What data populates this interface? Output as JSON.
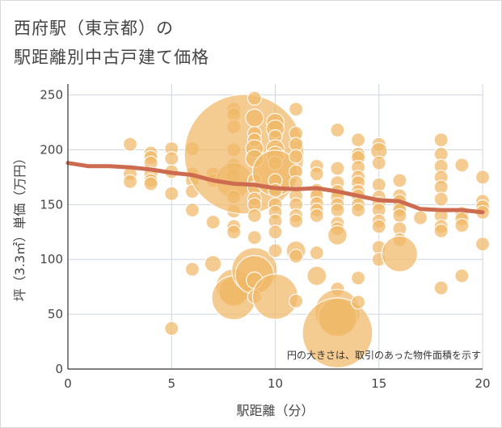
{
  "title_line1": "西府駅（東京都）の",
  "title_line2": "駅距離別中古戸建て価格",
  "colors": {
    "bubble": "#f0b968",
    "trend": "#cd6b50",
    "grid": "#cfd6e0",
    "axis": "#333333"
  },
  "chart_data": {
    "type": "scatter",
    "title": "西府駅（東京都）の駅距離別中古戸建て価格",
    "xlabel": "駅距離（分）",
    "ylabel": "坪（3.3㎡）単価（万円）",
    "xlim": [
      0,
      20
    ],
    "ylim": [
      0,
      260
    ],
    "x_ticks": [
      "0",
      "5",
      "10",
      "15",
      "20"
    ],
    "y_ticks": [
      "0",
      "50",
      "100",
      "150",
      "200",
      "250"
    ],
    "annotation": "円の大きさは、取引のあった物件面積を示す",
    "points": [
      {
        "x": 3,
        "y": 205,
        "s": 1
      },
      {
        "x": 3,
        "y": 178,
        "s": 1
      },
      {
        "x": 3,
        "y": 171,
        "s": 1
      },
      {
        "x": 4,
        "y": 197,
        "s": 1
      },
      {
        "x": 4,
        "y": 193,
        "s": 1
      },
      {
        "x": 4,
        "y": 188,
        "s": 1
      },
      {
        "x": 4,
        "y": 178,
        "s": 1
      },
      {
        "x": 4,
        "y": 172,
        "s": 1
      },
      {
        "x": 4,
        "y": 169,
        "s": 1
      },
      {
        "x": 5,
        "y": 201,
        "s": 1
      },
      {
        "x": 5,
        "y": 192,
        "s": 1
      },
      {
        "x": 5,
        "y": 180,
        "s": 1
      },
      {
        "x": 5,
        "y": 160,
        "s": 1
      },
      {
        "x": 5,
        "y": 37,
        "s": 1
      },
      {
        "x": 6,
        "y": 201,
        "s": 1
      },
      {
        "x": 6,
        "y": 178,
        "s": 1
      },
      {
        "x": 6,
        "y": 172,
        "s": 1
      },
      {
        "x": 6,
        "y": 162,
        "s": 1
      },
      {
        "x": 6,
        "y": 145,
        "s": 1
      },
      {
        "x": 6,
        "y": 91,
        "s": 1
      },
      {
        "x": 7,
        "y": 178,
        "s": 1
      },
      {
        "x": 7,
        "y": 172,
        "s": 1
      },
      {
        "x": 7,
        "y": 134,
        "s": 1
      },
      {
        "x": 7,
        "y": 96,
        "s": 1.2
      },
      {
        "x": 8,
        "y": 237,
        "s": 1
      },
      {
        "x": 8,
        "y": 232,
        "s": 1
      },
      {
        "x": 8,
        "y": 221,
        "s": 1
      },
      {
        "x": 8,
        "y": 200,
        "s": 1
      },
      {
        "x": 8,
        "y": 186,
        "s": 1
      },
      {
        "x": 8,
        "y": 177,
        "s": 1
      },
      {
        "x": 8,
        "y": 172,
        "s": 2.6
      },
      {
        "x": 8,
        "y": 157,
        "s": 1
      },
      {
        "x": 8,
        "y": 144,
        "s": 1
      },
      {
        "x": 8,
        "y": 130,
        "s": 1
      },
      {
        "x": 8,
        "y": 125,
        "s": 1
      },
      {
        "x": 8,
        "y": 75,
        "s": 2.6
      },
      {
        "x": 8,
        "y": 71,
        "s": 2.2
      },
      {
        "x": 8,
        "y": 65,
        "s": 3.2
      },
      {
        "x": 8.5,
        "y": 196,
        "s": 8.7
      },
      {
        "x": 9,
        "y": 247,
        "s": 1
      },
      {
        "x": 9,
        "y": 229,
        "s": 1.3
      },
      {
        "x": 9,
        "y": 215,
        "s": 1
      },
      {
        "x": 9,
        "y": 209,
        "s": 1
      },
      {
        "x": 9,
        "y": 201,
        "s": 1.3
      },
      {
        "x": 9,
        "y": 192,
        "s": 1.3
      },
      {
        "x": 9,
        "y": 172,
        "s": 1
      },
      {
        "x": 9,
        "y": 165,
        "s": 1
      },
      {
        "x": 9,
        "y": 155,
        "s": 1
      },
      {
        "x": 9,
        "y": 150,
        "s": 1
      },
      {
        "x": 9,
        "y": 140,
        "s": 1
      },
      {
        "x": 9,
        "y": 120,
        "s": 1
      },
      {
        "x": 9,
        "y": 90,
        "s": 3.3
      },
      {
        "x": 9,
        "y": 86,
        "s": 2.8
      },
      {
        "x": 9,
        "y": 81,
        "s": 1.2
      },
      {
        "x": 9,
        "y": 66,
        "s": 1
      },
      {
        "x": 10,
        "y": 225,
        "s": 1.3
      },
      {
        "x": 10,
        "y": 219,
        "s": 1.3
      },
      {
        "x": 10,
        "y": 212,
        "s": 1
      },
      {
        "x": 10,
        "y": 201,
        "s": 1.3
      },
      {
        "x": 10,
        "y": 195,
        "s": 1.3
      },
      {
        "x": 10,
        "y": 188,
        "s": 1
      },
      {
        "x": 10,
        "y": 179,
        "s": 3.3
      },
      {
        "x": 10,
        "y": 172,
        "s": 1
      },
      {
        "x": 10,
        "y": 163,
        "s": 1
      },
      {
        "x": 10,
        "y": 150,
        "s": 1
      },
      {
        "x": 10,
        "y": 143,
        "s": 1
      },
      {
        "x": 10,
        "y": 135,
        "s": 1
      },
      {
        "x": 10,
        "y": 125,
        "s": 1
      },
      {
        "x": 10,
        "y": 108,
        "s": 1
      },
      {
        "x": 10,
        "y": 66,
        "s": 3.3
      },
      {
        "x": 11,
        "y": 237,
        "s": 1
      },
      {
        "x": 11,
        "y": 215,
        "s": 1
      },
      {
        "x": 11,
        "y": 205,
        "s": 1
      },
      {
        "x": 11,
        "y": 194,
        "s": 1
      },
      {
        "x": 11,
        "y": 180,
        "s": 1
      },
      {
        "x": 11,
        "y": 170,
        "s": 1
      },
      {
        "x": 11,
        "y": 158,
        "s": 1
      },
      {
        "x": 11,
        "y": 150,
        "s": 1
      },
      {
        "x": 11,
        "y": 140,
        "s": 1
      },
      {
        "x": 11,
        "y": 135,
        "s": 1
      },
      {
        "x": 11,
        "y": 108,
        "s": 1.4
      },
      {
        "x": 11,
        "y": 103,
        "s": 1
      },
      {
        "x": 11,
        "y": 62,
        "s": 1
      },
      {
        "x": 12,
        "y": 185,
        "s": 1
      },
      {
        "x": 12,
        "y": 178,
        "s": 1
      },
      {
        "x": 12,
        "y": 163,
        "s": 1
      },
      {
        "x": 12,
        "y": 158,
        "s": 1
      },
      {
        "x": 12,
        "y": 151,
        "s": 1
      },
      {
        "x": 12,
        "y": 145,
        "s": 1
      },
      {
        "x": 12,
        "y": 140,
        "s": 1
      },
      {
        "x": 12,
        "y": 106,
        "s": 1
      },
      {
        "x": 12,
        "y": 85,
        "s": 1.4
      },
      {
        "x": 13,
        "y": 218,
        "s": 1
      },
      {
        "x": 13,
        "y": 183,
        "s": 1
      },
      {
        "x": 13,
        "y": 170,
        "s": 1
      },
      {
        "x": 13,
        "y": 162,
        "s": 1
      },
      {
        "x": 13,
        "y": 157,
        "s": 1
      },
      {
        "x": 13,
        "y": 150,
        "s": 1
      },
      {
        "x": 13,
        "y": 145,
        "s": 1
      },
      {
        "x": 13,
        "y": 133,
        "s": 1
      },
      {
        "x": 13,
        "y": 128,
        "s": 1
      },
      {
        "x": 13,
        "y": 122,
        "s": 1.4
      },
      {
        "x": 13,
        "y": 73,
        "s": 1
      },
      {
        "x": 13,
        "y": 52,
        "s": 3.3
      },
      {
        "x": 13,
        "y": 47,
        "s": 2.8
      },
      {
        "x": 13,
        "y": 33,
        "s": 5.1
      },
      {
        "x": 14,
        "y": 209,
        "s": 1
      },
      {
        "x": 14,
        "y": 196,
        "s": 1
      },
      {
        "x": 14,
        "y": 193,
        "s": 1
      },
      {
        "x": 14,
        "y": 184,
        "s": 1
      },
      {
        "x": 14,
        "y": 175,
        "s": 1
      },
      {
        "x": 14,
        "y": 170,
        "s": 1
      },
      {
        "x": 14,
        "y": 162,
        "s": 1
      },
      {
        "x": 14,
        "y": 158,
        "s": 1
      },
      {
        "x": 14,
        "y": 150,
        "s": 1
      },
      {
        "x": 14,
        "y": 145,
        "s": 1
      },
      {
        "x": 14,
        "y": 83,
        "s": 1
      },
      {
        "x": 14,
        "y": 61,
        "s": 1
      },
      {
        "x": 15,
        "y": 205,
        "s": 1
      },
      {
        "x": 15,
        "y": 199,
        "s": 1.2
      },
      {
        "x": 15,
        "y": 188,
        "s": 1
      },
      {
        "x": 15,
        "y": 168,
        "s": 1
      },
      {
        "x": 15,
        "y": 157,
        "s": 1
      },
      {
        "x": 15,
        "y": 151,
        "s": 1
      },
      {
        "x": 15,
        "y": 145,
        "s": 1
      },
      {
        "x": 15,
        "y": 135,
        "s": 1
      },
      {
        "x": 15,
        "y": 130,
        "s": 1
      },
      {
        "x": 15,
        "y": 111,
        "s": 1
      },
      {
        "x": 15,
        "y": 100,
        "s": 1
      },
      {
        "x": 16,
        "y": 172,
        "s": 1
      },
      {
        "x": 16,
        "y": 158,
        "s": 1
      },
      {
        "x": 16,
        "y": 153,
        "s": 1
      },
      {
        "x": 16,
        "y": 148,
        "s": 1
      },
      {
        "x": 16,
        "y": 145,
        "s": 1
      },
      {
        "x": 16,
        "y": 140,
        "s": 1
      },
      {
        "x": 16,
        "y": 128,
        "s": 1
      },
      {
        "x": 16,
        "y": 118,
        "s": 1
      },
      {
        "x": 16,
        "y": 105,
        "s": 2.6
      },
      {
        "x": 17,
        "y": 138,
        "s": 1
      },
      {
        "x": 18,
        "y": 209,
        "s": 1
      },
      {
        "x": 18,
        "y": 196,
        "s": 1
      },
      {
        "x": 18,
        "y": 185,
        "s": 1
      },
      {
        "x": 18,
        "y": 175,
        "s": 1
      },
      {
        "x": 18,
        "y": 166,
        "s": 1
      },
      {
        "x": 18,
        "y": 155,
        "s": 1
      },
      {
        "x": 18,
        "y": 140,
        "s": 1
      },
      {
        "x": 18,
        "y": 130,
        "s": 1
      },
      {
        "x": 18,
        "y": 126,
        "s": 1
      },
      {
        "x": 18,
        "y": 74,
        "s": 1
      },
      {
        "x": 19,
        "y": 186,
        "s": 1
      },
      {
        "x": 19,
        "y": 142,
        "s": 1
      },
      {
        "x": 19,
        "y": 137,
        "s": 1
      },
      {
        "x": 19,
        "y": 131,
        "s": 1
      },
      {
        "x": 19,
        "y": 85,
        "s": 1
      },
      {
        "x": 20,
        "y": 175,
        "s": 1
      },
      {
        "x": 20,
        "y": 153,
        "s": 1
      },
      {
        "x": 20,
        "y": 148,
        "s": 1
      },
      {
        "x": 20,
        "y": 143,
        "s": 1
      },
      {
        "x": 20,
        "y": 114,
        "s": 1
      }
    ],
    "trend": [
      {
        "x": 0,
        "y": 188
      },
      {
        "x": 1,
        "y": 185
      },
      {
        "x": 2,
        "y": 185
      },
      {
        "x": 3,
        "y": 184
      },
      {
        "x": 4,
        "y": 182
      },
      {
        "x": 5,
        "y": 179
      },
      {
        "x": 6,
        "y": 177
      },
      {
        "x": 7,
        "y": 172
      },
      {
        "x": 8,
        "y": 169
      },
      {
        "x": 9,
        "y": 168
      },
      {
        "x": 10,
        "y": 165
      },
      {
        "x": 11,
        "y": 164
      },
      {
        "x": 12,
        "y": 165
      },
      {
        "x": 13,
        "y": 162
      },
      {
        "x": 14,
        "y": 158
      },
      {
        "x": 15,
        "y": 154
      },
      {
        "x": 16,
        "y": 153
      },
      {
        "x": 17,
        "y": 146
      },
      {
        "x": 18,
        "y": 145
      },
      {
        "x": 19,
        "y": 145
      },
      {
        "x": 20,
        "y": 143
      }
    ]
  }
}
